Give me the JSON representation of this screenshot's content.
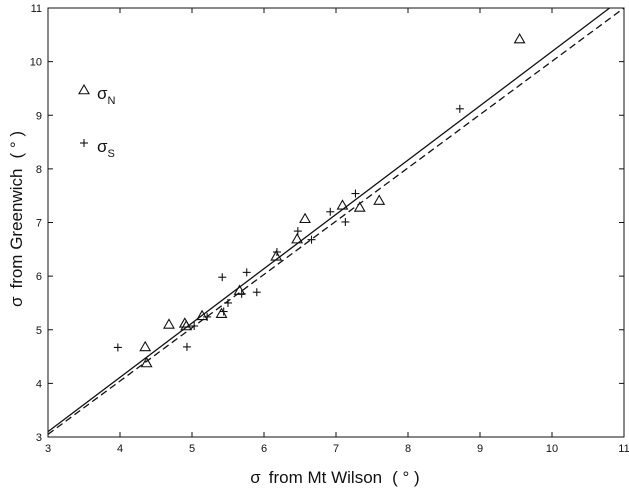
{
  "chart_data": {
    "type": "scatter",
    "xlim": [
      3,
      11
    ],
    "ylim": [
      3,
      11
    ],
    "x_ticks": [
      3,
      4,
      5,
      6,
      7,
      8,
      9,
      10,
      11
    ],
    "y_ticks": [
      3,
      4,
      5,
      6,
      7,
      8,
      9,
      10,
      11
    ],
    "xlabel": {
      "symbol": "σ",
      "text": "from Mt Wilson",
      "unit": "( ° )"
    },
    "ylabel": {
      "symbol": "σ",
      "text": "from Greenwich",
      "unit": "( ° )"
    },
    "grid": false,
    "legend_position": "upper-left",
    "series": [
      {
        "name": "σN",
        "label_symbol": "σ",
        "label_subscript": "N",
        "marker": "triangle",
        "points": [
          [
            4.35,
            4.68
          ],
          [
            4.37,
            4.38
          ],
          [
            4.68,
            5.1
          ],
          [
            4.9,
            5.12
          ],
          [
            4.92,
            5.07
          ],
          [
            5.14,
            5.26
          ],
          [
            5.41,
            5.3
          ],
          [
            5.66,
            5.73
          ],
          [
            6.17,
            6.37
          ],
          [
            6.46,
            6.69
          ],
          [
            6.57,
            7.07
          ],
          [
            7.09,
            7.32
          ],
          [
            7.33,
            7.28
          ],
          [
            7.6,
            7.41
          ],
          [
            9.55,
            10.42
          ]
        ]
      },
      {
        "name": "σS",
        "label_symbol": "σ",
        "label_subscript": "S",
        "marker": "plus",
        "points": [
          [
            3.97,
            4.67
          ],
          [
            4.93,
            4.68
          ],
          [
            5.03,
            5.07
          ],
          [
            5.21,
            5.24
          ],
          [
            5.42,
            5.98
          ],
          [
            5.44,
            5.34
          ],
          [
            5.5,
            5.5
          ],
          [
            5.69,
            5.67
          ],
          [
            5.76,
            6.07
          ],
          [
            5.9,
            5.7
          ],
          [
            6.18,
            6.45
          ],
          [
            6.47,
            6.84
          ],
          [
            6.66,
            6.68
          ],
          [
            6.92,
            7.2
          ],
          [
            7.13,
            7.01
          ],
          [
            7.27,
            7.54
          ],
          [
            8.72,
            9.12
          ]
        ]
      }
    ],
    "lines": [
      {
        "style": "solid",
        "x": [
          3,
          10.8
        ],
        "y": [
          3.1,
          11
        ]
      },
      {
        "style": "dashed",
        "x": [
          3,
          11
        ],
        "y": [
          3.05,
          11
        ]
      }
    ]
  }
}
